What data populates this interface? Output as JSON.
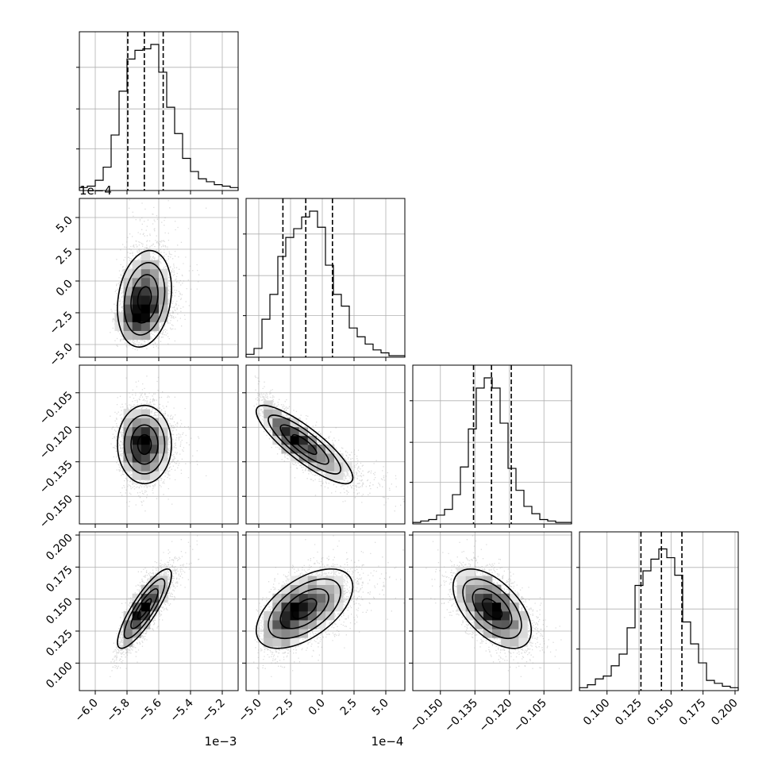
{
  "chart_data": {
    "type": "corner",
    "grid": true,
    "quantile_lines": "dashed",
    "parameters": [
      {
        "id": "p1",
        "range": [
          -6.1,
          -5.1
        ],
        "ticks": [
          -6.0,
          -5.8,
          -5.6,
          -5.4,
          -5.2
        ],
        "tick_labels": [
          "−6.0",
          "−5.8",
          "−5.6",
          "−5.4",
          "−5.2"
        ],
        "offset_label": "1e−3",
        "mean": -5.69,
        "sd": 0.085,
        "skew": 0.15,
        "quantiles": [
          -5.795,
          -5.691,
          -5.572
        ],
        "hist": [
          0.02,
          0.03,
          0.07,
          0.16,
          0.38,
          0.68,
          0.9,
          0.96,
          0.97,
          1.0,
          0.81,
          0.57,
          0.39,
          0.22,
          0.13,
          0.08,
          0.06,
          0.04,
          0.03,
          0.02
        ]
      },
      {
        "id": "p2",
        "range": [
          -6.0,
          6.5
        ],
        "ticks": [
          -5.0,
          -2.5,
          0.0,
          2.5,
          5.0
        ],
        "tick_labels": [
          "−5.0",
          "−2.5",
          "0.0",
          "2.5",
          "5.0"
        ],
        "offset_label": "1e−4",
        "mean": -1.4,
        "sd": 1.9,
        "skew": 0.25,
        "quantiles": [
          -3.1,
          -1.3,
          0.8
        ],
        "hist": [
          0.02,
          0.06,
          0.26,
          0.43,
          0.69,
          0.82,
          0.88,
          0.96,
          1.0,
          0.89,
          0.63,
          0.43,
          0.35,
          0.2,
          0.14,
          0.09,
          0.05,
          0.03,
          0.01,
          0.01
        ]
      },
      {
        "id": "p3",
        "range": [
          -0.162,
          -0.093
        ],
        "ticks": [
          -0.15,
          -0.135,
          -0.12,
          -0.105
        ],
        "tick_labels": [
          "−0.150",
          "−0.135",
          "−0.120",
          "−0.105"
        ],
        "offset_label": "",
        "mean": -0.1275,
        "sd": 0.0085,
        "skew": 0.0,
        "quantiles": [
          -0.1356,
          -0.1278,
          -0.1192
        ],
        "hist": [
          0.01,
          0.02,
          0.03,
          0.06,
          0.1,
          0.2,
          0.39,
          0.65,
          0.93,
          1.0,
          0.93,
          0.69,
          0.38,
          0.23,
          0.12,
          0.07,
          0.03,
          0.02,
          0.01,
          0.01
        ]
      },
      {
        "id": "p4",
        "range": [
          0.0785,
          0.2025
        ],
        "ticks": [
          0.1,
          0.125,
          0.15,
          0.175,
          0.2
        ],
        "tick_labels": [
          "0.100",
          "0.125",
          "0.150",
          "0.175",
          "0.200"
        ],
        "offset_label": "",
        "mean": 0.1425,
        "sd": 0.0155,
        "skew": 0.05,
        "quantiles": [
          0.1265,
          0.1425,
          0.1585
        ],
        "hist": [
          0.02,
          0.04,
          0.08,
          0.1,
          0.17,
          0.25,
          0.43,
          0.72,
          0.82,
          0.9,
          0.97,
          0.91,
          0.79,
          0.47,
          0.32,
          0.19,
          0.07,
          0.05,
          0.03,
          0.02
        ]
      }
    ],
    "left_tick_offset_labels": [
      "",
      "1e−4",
      "",
      ""
    ],
    "correlations": {
      "1-0": 0.2,
      "2-0": 0.0,
      "2-1": -0.85,
      "3-0": 0.85,
      "3-1": 0.55,
      "3-2": -0.55
    },
    "contour_levels": [
      0.5,
      1.0,
      1.5,
      2.0
    ]
  }
}
